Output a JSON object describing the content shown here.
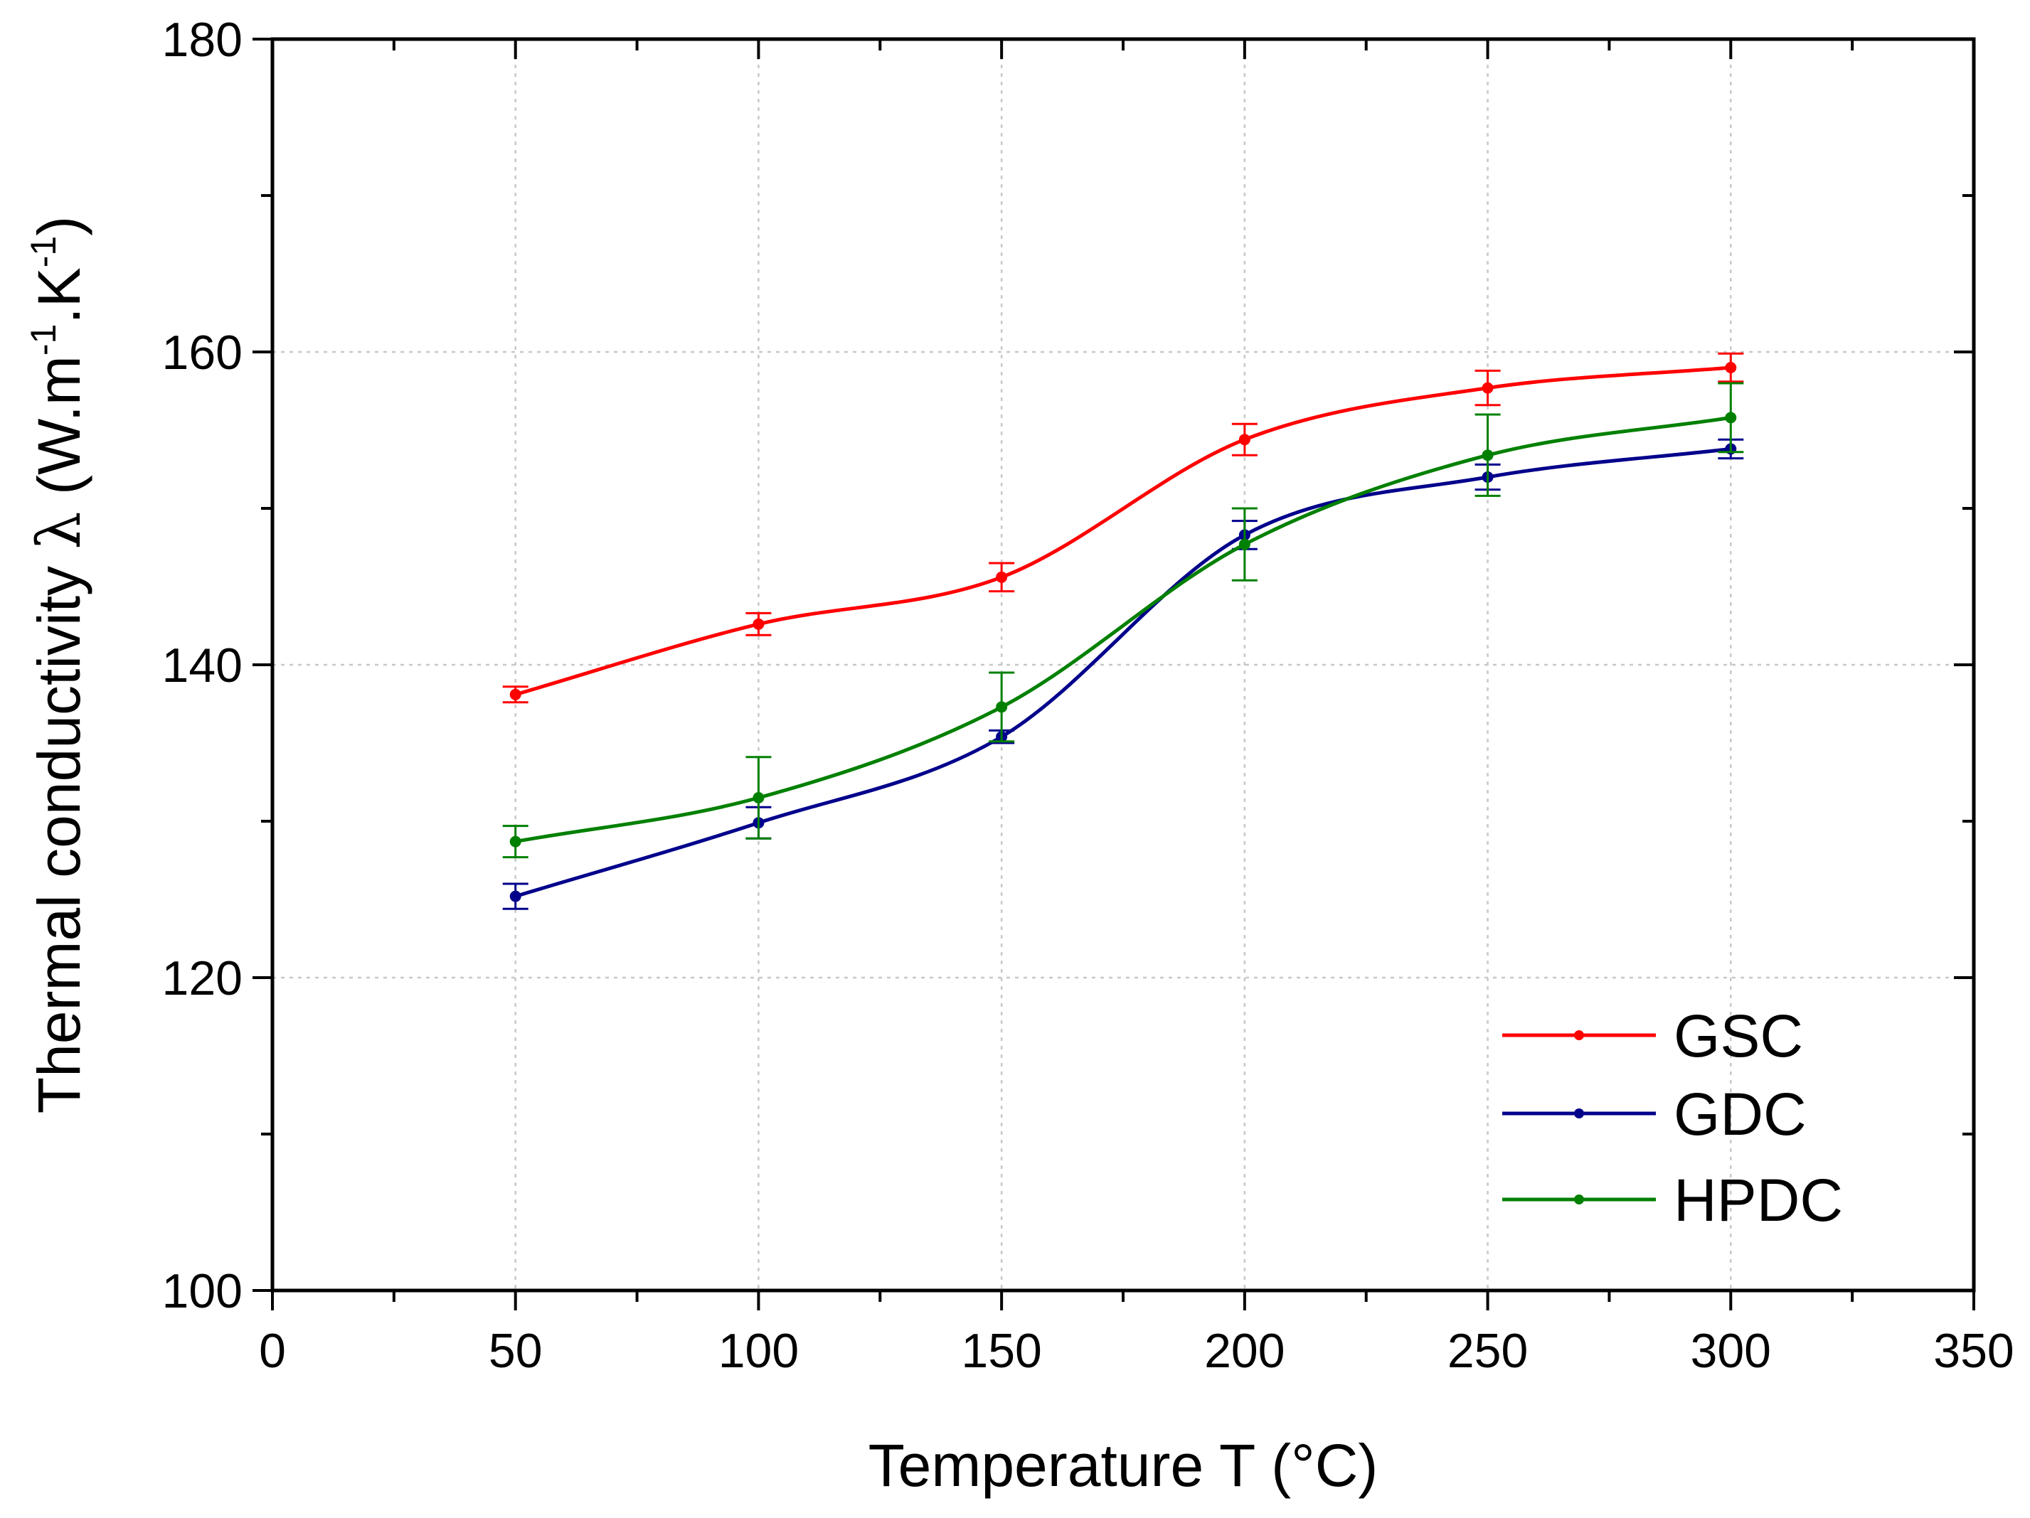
{
  "chart_data": {
    "type": "line",
    "title": "",
    "xlabel": "Temperature T (°C)",
    "ylabel": {
      "prefix": "Thermal conductivity ",
      "symbol": "λ",
      "unit_open": " (W.m",
      "exp1": "-1",
      "unit_mid": ".K",
      "exp2": "-1",
      "unit_close": ")"
    },
    "xlim": [
      0,
      350
    ],
    "ylim": [
      100,
      180
    ],
    "x_ticks": [
      0,
      50,
      100,
      150,
      200,
      250,
      300,
      350
    ],
    "x_tick_labels": [
      "0",
      "50",
      "100",
      "150",
      "200",
      "250",
      "300",
      "350"
    ],
    "y_ticks": [
      100,
      120,
      140,
      160,
      180
    ],
    "y_tick_labels": [
      "100",
      "120",
      "140",
      "160",
      "180"
    ],
    "x_minor_step": 25,
    "y_minor_step": 10,
    "grid": true,
    "legend_position": "bottom-right",
    "x": [
      50,
      100,
      150,
      200,
      250,
      300
    ],
    "series": [
      {
        "name": "GSC",
        "color": "#ff0000",
        "values": [
          138.1,
          142.6,
          145.6,
          154.4,
          157.7,
          159.0
        ],
        "errors": [
          0.5,
          0.7,
          0.9,
          1.0,
          1.1,
          0.9
        ]
      },
      {
        "name": "GDC",
        "color": "#00008b",
        "values": [
          125.2,
          129.9,
          135.4,
          148.3,
          152.0,
          153.8
        ],
        "errors": [
          0.8,
          1.0,
          0.4,
          0.9,
          0.8,
          0.6
        ]
      },
      {
        "name": "HPDC",
        "color": "#008000",
        "values": [
          128.7,
          131.5,
          137.3,
          147.7,
          153.4,
          155.8
        ],
        "errors": [
          1.0,
          2.6,
          2.2,
          2.3,
          2.6,
          2.2
        ]
      }
    ]
  }
}
